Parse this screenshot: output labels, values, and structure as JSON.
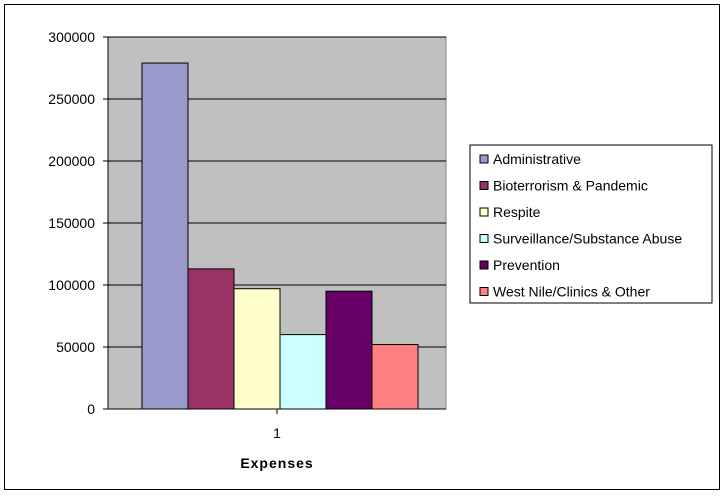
{
  "chart_data": {
    "type": "bar",
    "categories": [
      "1"
    ],
    "series": [
      {
        "name": "Administrative",
        "values": [
          279000
        ],
        "color": "#9999CC"
      },
      {
        "name": "Bioterrorism & Pandemic",
        "values": [
          113000
        ],
        "color": "#993366"
      },
      {
        "name": "Respite",
        "values": [
          97000
        ],
        "color": "#FFFFCC"
      },
      {
        "name": "Surveillance/Substance Abuse",
        "values": [
          60000
        ],
        "color": "#CCFFFF"
      },
      {
        "name": "Prevention",
        "values": [
          95000
        ],
        "color": "#660066"
      },
      {
        "name": "West Nile/Clinics & Other",
        "values": [
          52000
        ],
        "color": "#FF8080"
      }
    ],
    "xlabel": "Expenses",
    "ylabel": "",
    "ylim": [
      0,
      300000
    ],
    "yticks": [
      "0",
      "50000",
      "100000",
      "150000",
      "200000",
      "250000",
      "300000"
    ],
    "grid": true,
    "legend_position": "right",
    "plot_background": "#C0C0C0"
  }
}
